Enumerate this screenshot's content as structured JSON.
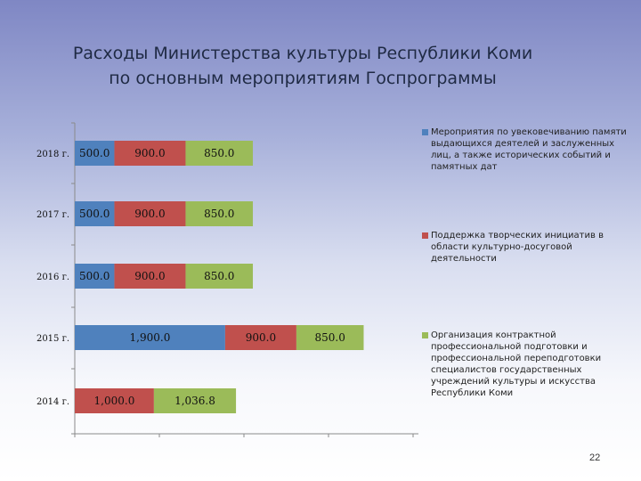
{
  "title_lines": [
    "Расходы Министерства культуры Республики Коми",
    "по основным мероприятиям Госпрограммы"
  ],
  "page_number": "22",
  "chart_data": {
    "type": "bar",
    "orientation": "horizontal",
    "stacked": true,
    "title": "Расходы Министерства культуры Республики Коми по основным мероприятиям Госпрограммы",
    "categories": [
      "2018 г.",
      "2017 г.",
      "2016 г.",
      "2015 г.",
      "2014 г."
    ],
    "series": [
      {
        "name": "Мероприятия по увековечиванию памяти выдающихся деятелей и заслуженных лиц, а также исторических событий и памятных дат",
        "color": "#4f81bd",
        "values": [
          500.0,
          500.0,
          500.0,
          1900.0,
          null
        ],
        "labels": [
          "500.0",
          "500.0",
          "500.0",
          "1,900.0",
          ""
        ]
      },
      {
        "name": "Поддержка творческих инициатив в области культурно-досуговой деятельности",
        "color": "#c0504d",
        "values": [
          900.0,
          900.0,
          900.0,
          900.0,
          1000.0
        ],
        "labels": [
          "900.0",
          "900.0",
          "900.0",
          "900.0",
          "1,000.0"
        ]
      },
      {
        "name": "Организация контрактной профессиональной подготовки и профессиональной переподготовки специалистов государственных учреждений культуры и искусства Республики Коми",
        "color": "#9bbb59",
        "values": [
          850.0,
          850.0,
          850.0,
          850.0,
          1036.8
        ],
        "labels": [
          "850.0",
          "850.0",
          "850.0",
          "850.0",
          "1,036.8"
        ]
      }
    ],
    "legend_position": "right",
    "grid": false
  }
}
